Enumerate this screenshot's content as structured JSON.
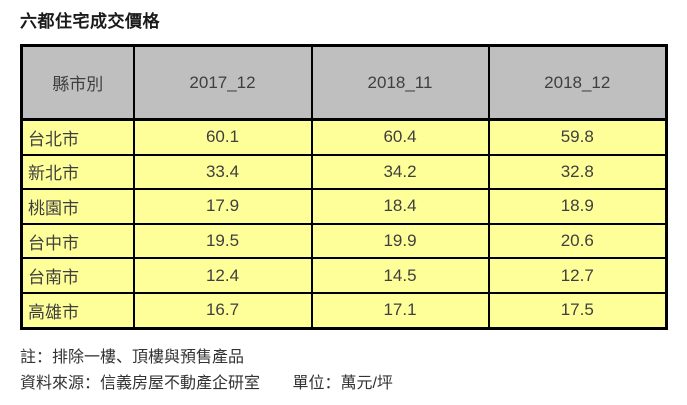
{
  "page": {
    "title": "六都住宅成交價格"
  },
  "chart_data": {
    "type": "table",
    "title": "六都住宅成交價格",
    "columns": [
      "縣市別",
      "2017_12",
      "2018_11",
      "2018_12"
    ],
    "rows": [
      {
        "city": "台北市",
        "values": [
          "60.1",
          "60.4",
          "59.8"
        ]
      },
      {
        "city": "新北市",
        "values": [
          "33.4",
          "34.2",
          "32.8"
        ]
      },
      {
        "city": "桃園市",
        "values": [
          "17.9",
          "18.4",
          "18.9"
        ]
      },
      {
        "city": "台中市",
        "values": [
          "19.5",
          "19.9",
          "20.6"
        ]
      },
      {
        "city": "台南市",
        "values": [
          "12.4",
          "14.5",
          "12.7"
        ]
      },
      {
        "city": "高雄市",
        "values": [
          "16.7",
          "17.1",
          "17.5"
        ]
      }
    ],
    "unit": "萬元/坪",
    "layout": {
      "header_bg": "#bfbfbf",
      "body_bg": "#ffff99",
      "border_color": "#000000"
    }
  },
  "footer": {
    "note": "註：排除一樓、頂樓與預售產品",
    "source": "資料來源：信義房屋不動產企研室",
    "unit_label": "單位：萬元/坪"
  }
}
